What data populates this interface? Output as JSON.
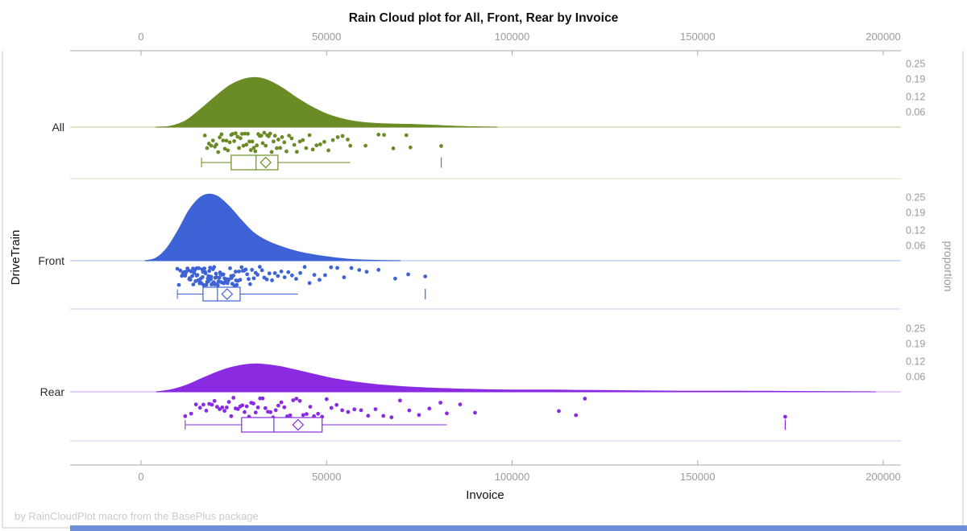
{
  "window": {
    "footer": "by RainCloudPlot macro from the BasePlus package"
  },
  "chart_data": {
    "type": "raincloud",
    "title": "Rain Cloud plot for All, Front, Rear by Invoice",
    "xlabel": "Invoice",
    "ylabel_left": "DriveTrain",
    "ylabel_right": "proportion",
    "x_axis": {
      "min": 0,
      "max": 200000,
      "ticks": [
        0,
        50000,
        100000,
        150000,
        200000
      ]
    },
    "proportion_ticks": [
      0.25,
      0.19,
      0.12,
      0.06
    ],
    "grid": "off",
    "accent_bar_color": "#6d8fd8",
    "frame_color": "#c9c9c9",
    "axis_line_color": "#a8a8a8",
    "groups": [
      {
        "name": "All",
        "color": "#6A8B26",
        "baseline_color": "#c9d49e",
        "separator_color": "#dfe5cb",
        "density": [
          [
            4000,
            0
          ],
          [
            8000,
            0.004
          ],
          [
            12000,
            0.025
          ],
          [
            16000,
            0.07
          ],
          [
            20000,
            0.12
          ],
          [
            24000,
            0.165
          ],
          [
            28000,
            0.19
          ],
          [
            31000,
            0.195
          ],
          [
            34000,
            0.185
          ],
          [
            38000,
            0.155
          ],
          [
            42000,
            0.115
          ],
          [
            46000,
            0.08
          ],
          [
            50000,
            0.052
          ],
          [
            55000,
            0.03
          ],
          [
            60000,
            0.018
          ],
          [
            66000,
            0.013
          ],
          [
            72000,
            0.011
          ],
          [
            78000,
            0.008
          ],
          [
            84000,
            0.004
          ],
          [
            90000,
            0.0015
          ],
          [
            96000,
            0
          ]
        ],
        "box": {
          "whisker_low": 16300,
          "q1": 24300,
          "median": 31000,
          "q3": 36900,
          "whisker_high": 56400,
          "mean": 33600,
          "outliers": [
            80900
          ]
        },
        "rain": [
          17200,
          17800,
          18300,
          18900,
          19400,
          19900,
          20300,
          20800,
          21200,
          21700,
          22100,
          22600,
          23000,
          23400,
          23900,
          24300,
          24700,
          25100,
          25500,
          26000,
          26400,
          26800,
          27200,
          27600,
          28000,
          28400,
          28800,
          29200,
          29600,
          30000,
          30400,
          30800,
          31200,
          31600,
          32000,
          32400,
          32800,
          33200,
          33600,
          34000,
          34400,
          34800,
          35200,
          35700,
          36100,
          36600,
          37000,
          37500,
          38000,
          38600,
          39200,
          39900,
          40600,
          41300,
          42000,
          42800,
          43600,
          44500,
          45400,
          46300,
          47300,
          48300,
          49400,
          50500,
          51700,
          53000,
          54300,
          55700,
          56400,
          60500,
          64000,
          65500,
          68000,
          71500,
          72600,
          80900
        ]
      },
      {
        "name": "Front",
        "color": "#3E63D6",
        "baseline_color": "#b5c5f1",
        "separator_color": "#d2dcf6",
        "density": [
          [
            1000,
            0
          ],
          [
            4000,
            0.01
          ],
          [
            7000,
            0.05
          ],
          [
            10000,
            0.12
          ],
          [
            13000,
            0.2
          ],
          [
            16000,
            0.25
          ],
          [
            18500,
            0.262
          ],
          [
            21000,
            0.25
          ],
          [
            24000,
            0.21
          ],
          [
            27000,
            0.16
          ],
          [
            30000,
            0.115
          ],
          [
            33000,
            0.085
          ],
          [
            36000,
            0.065
          ],
          [
            40000,
            0.045
          ],
          [
            44000,
            0.03
          ],
          [
            48000,
            0.02
          ],
          [
            52000,
            0.012
          ],
          [
            56000,
            0.006
          ],
          [
            60000,
            0.003
          ],
          [
            65000,
            0.001
          ],
          [
            70000,
            0
          ]
        ],
        "box": {
          "whisker_low": 9800,
          "q1": 16700,
          "median": 20600,
          "q3": 26700,
          "whisker_high": 42300,
          "mean": 23200,
          "outliers": [
            76600
          ]
        },
        "rain": [
          9800,
          10200,
          10600,
          11000,
          11300,
          11600,
          11900,
          12000,
          12200,
          12500,
          12800,
          13000,
          13100,
          13300,
          13500,
          13800,
          14000,
          14100,
          14300,
          14500,
          14700,
          15000,
          15000,
          15200,
          15400,
          15600,
          15800,
          15900,
          16100,
          16300,
          16500,
          16600,
          16700,
          16900,
          17100,
          17300,
          17400,
          17600,
          17800,
          18000,
          18100,
          18200,
          18400,
          18600,
          18800,
          18900,
          19000,
          19200,
          19400,
          19600,
          19700,
          19800,
          20000,
          20200,
          20400,
          20500,
          20700,
          20900,
          21100,
          21300,
          21400,
          21500,
          21800,
          22000,
          22200,
          22300,
          22500,
          22700,
          23000,
          23200,
          23300,
          23500,
          23700,
          24000,
          24300,
          24400,
          24600,
          24900,
          25200,
          25500,
          25600,
          25800,
          26100,
          26400,
          26700,
          27100,
          27400,
          27800,
          28200,
          28600,
          29000,
          29400,
          29900,
          30400,
          30900,
          31400,
          32000,
          32600,
          33200,
          33900,
          34600,
          35300,
          36100,
          36900,
          37800,
          38700,
          39700,
          40700,
          41800,
          42900,
          44100,
          45400,
          46700,
          48100,
          49600,
          51200,
          52900,
          54700,
          56700,
          58800,
          60800,
          64000,
          68500,
          72000,
          76600
        ]
      },
      {
        "name": "Rear",
        "color": "#8A2BE2",
        "baseline_color": "#d2b0f0",
        "separator_color": "#e7d8f8",
        "density": [
          [
            4000,
            0
          ],
          [
            8000,
            0.008
          ],
          [
            12000,
            0.025
          ],
          [
            16000,
            0.05
          ],
          [
            20000,
            0.075
          ],
          [
            24000,
            0.095
          ],
          [
            28000,
            0.107
          ],
          [
            31000,
            0.11
          ],
          [
            34000,
            0.107
          ],
          [
            38000,
            0.098
          ],
          [
            42000,
            0.085
          ],
          [
            47000,
            0.068
          ],
          [
            52000,
            0.052
          ],
          [
            58000,
            0.038
          ],
          [
            64000,
            0.028
          ],
          [
            70000,
            0.021
          ],
          [
            76000,
            0.016
          ],
          [
            82000,
            0.013
          ],
          [
            88000,
            0.01
          ],
          [
            95000,
            0.008
          ],
          [
            103000,
            0.007
          ],
          [
            111000,
            0.007
          ],
          [
            118000,
            0.006
          ],
          [
            126000,
            0.005
          ],
          [
            135000,
            0.004
          ],
          [
            145000,
            0.003
          ],
          [
            155000,
            0.0028
          ],
          [
            165000,
            0.0026
          ],
          [
            172000,
            0.002
          ],
          [
            180000,
            0.0012
          ],
          [
            190000,
            0.0005
          ],
          [
            198000,
            0
          ]
        ],
        "box": {
          "whisker_low": 11900,
          "q1": 27100,
          "median": 35800,
          "q3": 48800,
          "whisker_high": 82400,
          "mean": 42300,
          "outliers": [
            173600
          ]
        },
        "rain": [
          11900,
          13500,
          14800,
          15900,
          16800,
          17600,
          18400,
          19100,
          19800,
          20500,
          21200,
          21900,
          22500,
          23100,
          23700,
          24300,
          24900,
          25500,
          26100,
          26700,
          27300,
          27900,
          28500,
          29100,
          29700,
          30300,
          30900,
          31500,
          32100,
          32800,
          33500,
          34200,
          34900,
          35600,
          36300,
          37000,
          37800,
          38600,
          39400,
          40200,
          41000,
          41900,
          42800,
          43700,
          44600,
          45600,
          46600,
          47700,
          48800,
          50000,
          51300,
          52700,
          54200,
          55800,
          57500,
          59300,
          61200,
          63200,
          65300,
          67500,
          69800,
          72300,
          74900,
          77700,
          80700,
          82400,
          86000,
          90000,
          112600,
          117200,
          119600,
          173600
        ]
      }
    ]
  }
}
